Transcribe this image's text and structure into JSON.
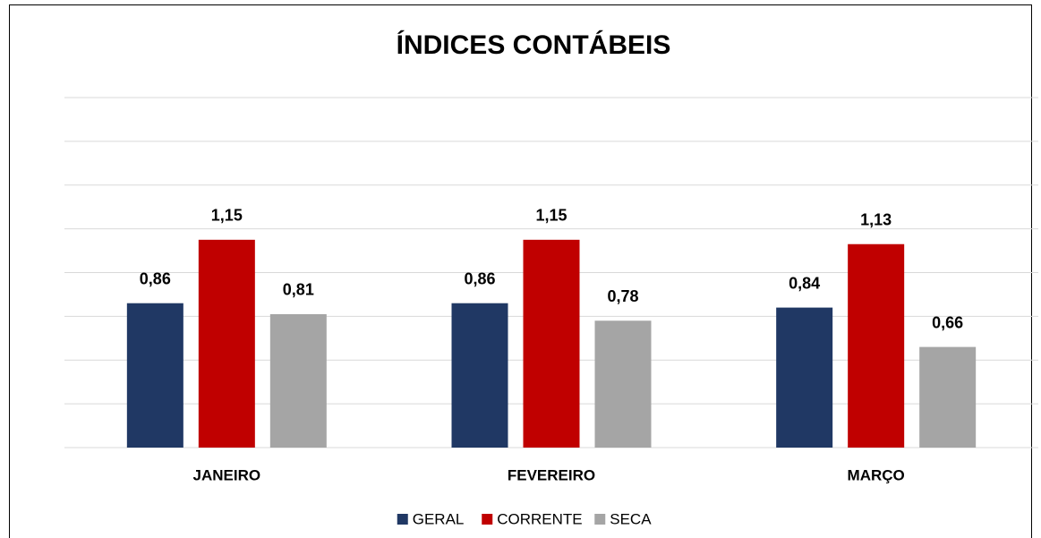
{
  "chart_data": {
    "type": "bar",
    "title": "ÍNDICES CONTÁBEIS",
    "categories": [
      "JANEIRO",
      "FEVEREIRO",
      "MARÇO"
    ],
    "series": [
      {
        "name": "GERAL",
        "color": "#203864",
        "values": [
          0.86,
          0.86,
          0.84
        ],
        "value_labels": [
          "0,86",
          "0,86",
          "0,84"
        ]
      },
      {
        "name": "CORRENTE",
        "color": "#c00000",
        "values": [
          1.15,
          1.15,
          1.13
        ],
        "value_labels": [
          "1,15",
          "1,15",
          "1,13"
        ]
      },
      {
        "name": "SECA",
        "color": "#a5a5a5",
        "values": [
          0.81,
          0.78,
          0.66
        ],
        "value_labels": [
          "0,81",
          "0,78",
          "0,66"
        ]
      }
    ],
    "ylim": [
      0.2,
      1.8
    ],
    "yticks": [
      0.2,
      0.4,
      0.6,
      0.8,
      1.0,
      1.2,
      1.4,
      1.6,
      1.8
    ],
    "grid": true,
    "legend": "bottom"
  }
}
